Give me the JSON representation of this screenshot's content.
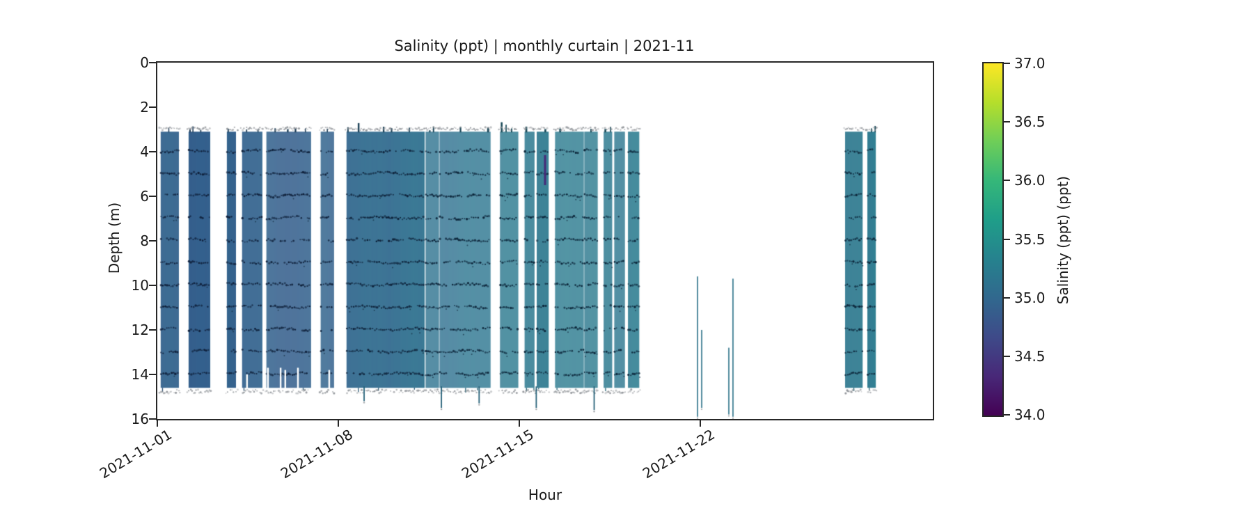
{
  "figure": {
    "title": "Salinity (ppt) | monthly curtain | 2021-11",
    "x_axis": {
      "label": "Hour",
      "tick_labels": [
        "2021-11-01",
        "2021-11-08",
        "2021-11-15",
        "2021-11-22"
      ],
      "tick_days": [
        0,
        7,
        14,
        21
      ],
      "range_days": [
        0,
        30
      ]
    },
    "y_axis": {
      "label": "Depth (m)",
      "ticks": [
        0,
        2,
        4,
        6,
        8,
        10,
        12,
        14,
        16
      ],
      "range": [
        0,
        16
      ]
    },
    "colorbar": {
      "label": "Salinity (ppt) (ppt)",
      "tick_labels": [
        "34.0",
        "34.5",
        "35.0",
        "35.5",
        "36.0",
        "36.5",
        "37.0"
      ],
      "vmin": 34.0,
      "vmax": 37.0,
      "colormap": "viridis"
    }
  },
  "chart_data": {
    "type": "heatmap",
    "title": "Salinity (ppt) | monthly curtain | 2021-11",
    "xlabel": "Hour",
    "ylabel": "Depth (m)",
    "x_start": "2021-11-01",
    "x_end": "2021-12-01",
    "x_tick_labels": [
      "2021-11-01",
      "2021-11-08",
      "2021-11-15",
      "2021-11-22"
    ],
    "y_ticks": [
      0,
      2,
      4,
      6,
      8,
      10,
      12,
      14,
      16
    ],
    "ylim": [
      16,
      0
    ],
    "value_range": [
      34.0,
      37.0
    ],
    "depth_extent_m": [
      3.1,
      14.6
    ],
    "sensor_line_depths_m": [
      4,
      5,
      6,
      7,
      8,
      9,
      10,
      11,
      12,
      13,
      14
    ],
    "bands": [
      {
        "from_day": 0.13,
        "to_day": 0.83,
        "sal": [
          34.92,
          34.92
        ]
      },
      {
        "from_day": 1.21,
        "to_day": 2.02,
        "sal": [
          34.92,
          34.94
        ]
      },
      {
        "from_day": 2.69,
        "to_day": 3.04,
        "sal": [
          34.94,
          34.94
        ]
      },
      {
        "from_day": 3.28,
        "to_day": 4.04,
        "sal": [
          34.94,
          34.95
        ]
      },
      {
        "from_day": 4.22,
        "to_day": 5.92,
        "sal": [
          34.95,
          34.97
        ]
      },
      {
        "from_day": 6.32,
        "to_day": 6.81,
        "sal": [
          34.97,
          34.98
        ]
      },
      {
        "from_day": 7.32,
        "to_day": 10.33,
        "sal": [
          34.97,
          35.1
        ]
      },
      {
        "from_day": 10.38,
        "to_day": 10.87,
        "sal": [
          35.1,
          35.12
        ]
      },
      {
        "from_day": 10.92,
        "to_day": 12.86,
        "sal": [
          35.12,
          35.18
        ]
      },
      {
        "from_day": 13.26,
        "to_day": 13.94,
        "sal": [
          35.2,
          35.2
        ]
      },
      {
        "from_day": 14.21,
        "to_day": 14.58,
        "sal": [
          35.2,
          35.2
        ]
      },
      {
        "from_day": 14.68,
        "to_day": 15.12,
        "sal": [
          35.2,
          35.2
        ]
      },
      {
        "from_day": 15.39,
        "to_day": 16.49,
        "sal": [
          35.2,
          35.22
        ]
      },
      {
        "from_day": 16.52,
        "to_day": 17.03,
        "sal": [
          35.22,
          35.22
        ]
      },
      {
        "from_day": 17.27,
        "to_day": 17.57,
        "sal": [
          35.2,
          35.2
        ]
      },
      {
        "from_day": 17.68,
        "to_day": 18.08,
        "sal": [
          35.2,
          35.2
        ]
      },
      {
        "from_day": 18.21,
        "to_day": 18.64,
        "sal": [
          35.2,
          35.2
        ]
      },
      {
        "from_day": 26.61,
        "to_day": 27.28,
        "sal": [
          35.2,
          35.2
        ]
      },
      {
        "from_day": 27.47,
        "to_day": 27.79,
        "sal": [
          35.2,
          35.2
        ]
      }
    ],
    "bottom_notches": [
      {
        "day": 3.47,
        "from_depth": 14.0
      },
      {
        "day": 4.28,
        "from_depth": 13.7
      },
      {
        "day": 4.77,
        "from_depth": 13.7
      },
      {
        "day": 4.95,
        "from_depth": 13.8
      },
      {
        "day": 5.44,
        "from_depth": 13.7
      },
      {
        "day": 6.65,
        "from_depth": 13.8
      }
    ],
    "bottom_spikes": [
      {
        "day": 8.0,
        "to_depth": 15.2
      },
      {
        "day": 10.99,
        "to_depth": 15.5
      },
      {
        "day": 12.45,
        "to_depth": 15.3
      },
      {
        "day": 14.66,
        "to_depth": 15.5
      },
      {
        "day": 16.9,
        "to_depth": 15.6
      }
    ],
    "thin_columns": [
      {
        "day": 20.9,
        "d0": 9.6,
        "d1": 15.9
      },
      {
        "day": 21.06,
        "d0": 12.0,
        "d1": 15.5
      },
      {
        "day": 22.11,
        "d0": 12.8,
        "d1": 15.8
      },
      {
        "day": 22.27,
        "d0": 9.7,
        "d1": 15.9
      }
    ],
    "anomaly": {
      "day": 15.0,
      "d0": 4.15,
      "d1": 5.5,
      "salinity": 34.35
    }
  }
}
